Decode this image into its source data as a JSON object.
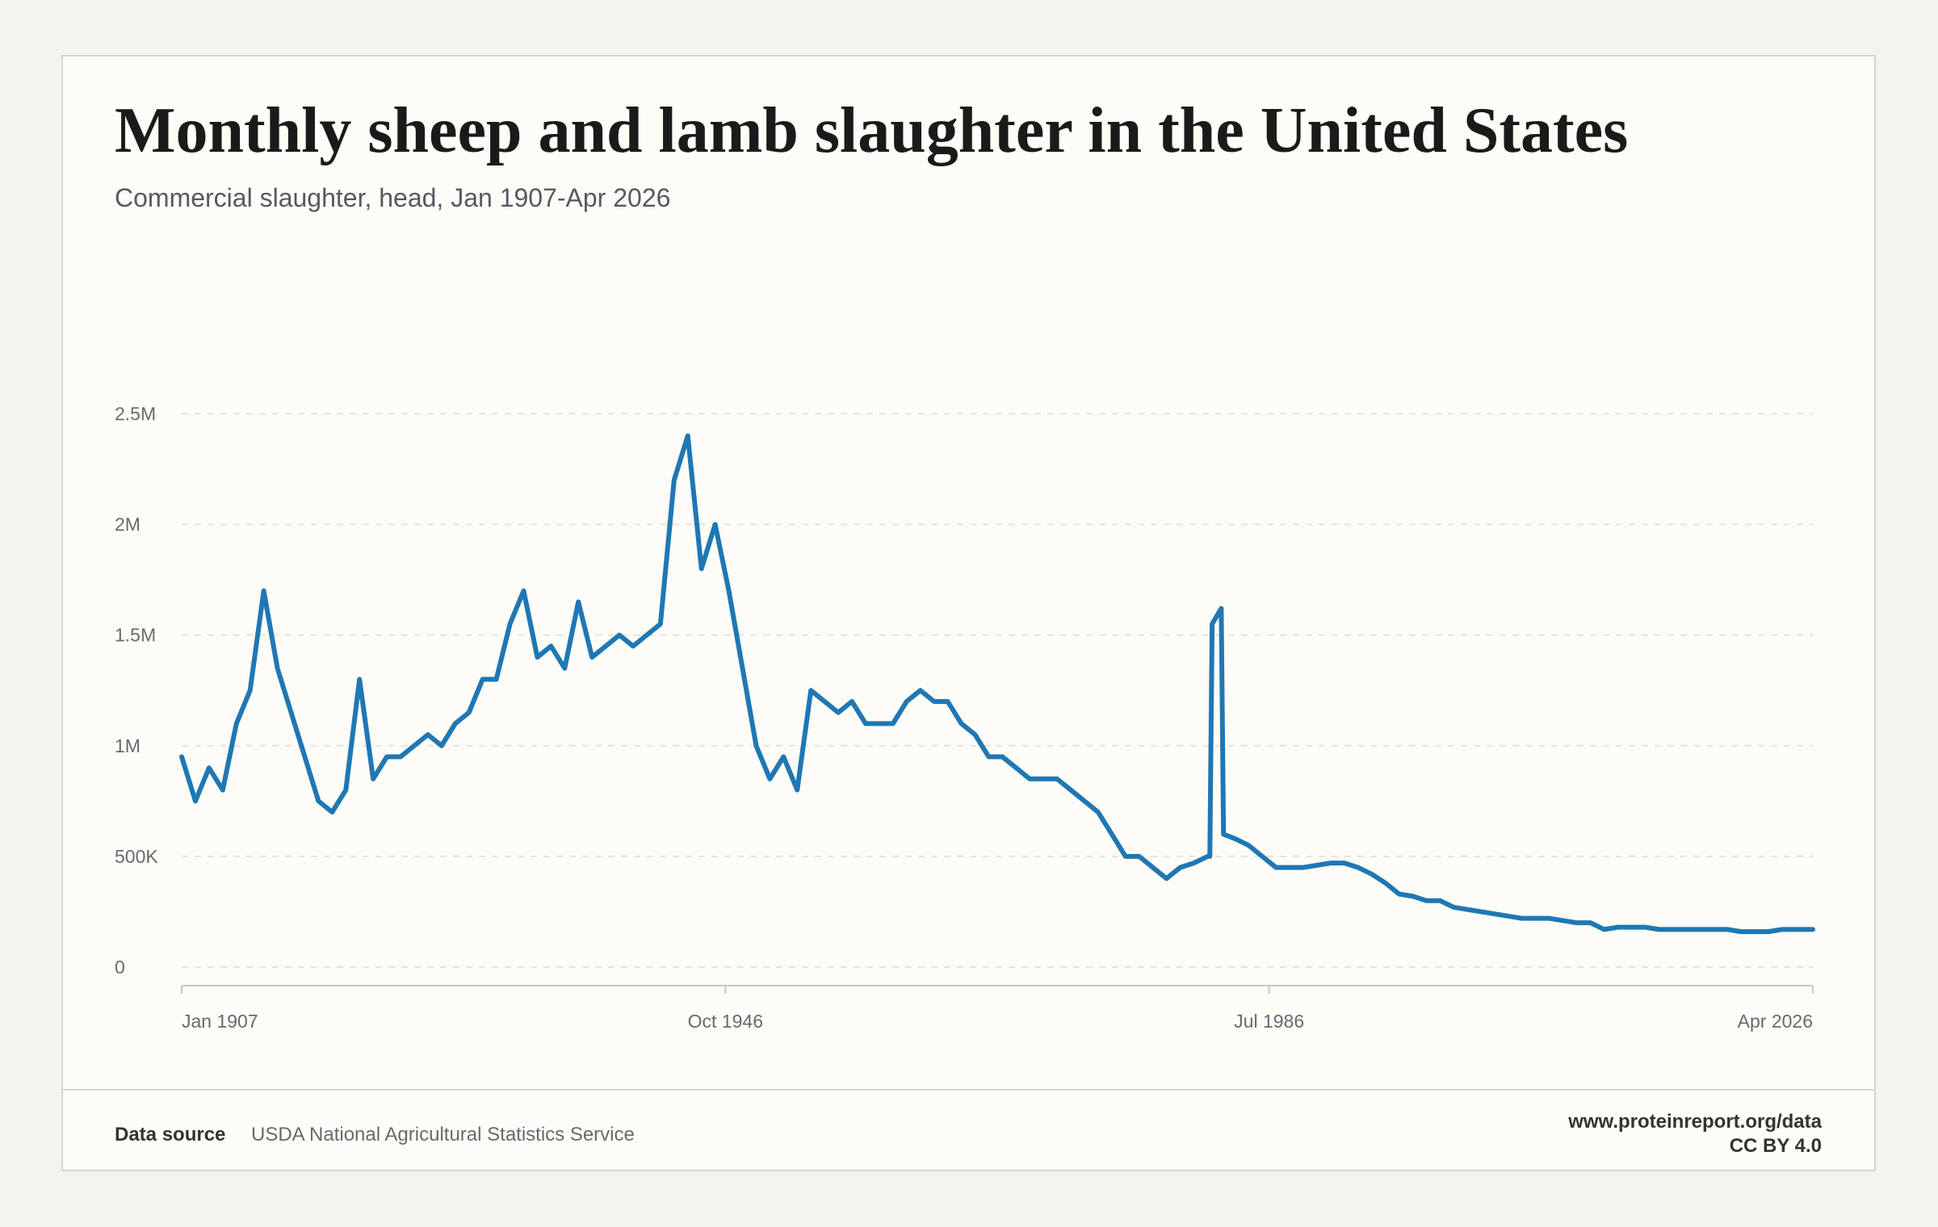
{
  "chart_data": {
    "type": "line",
    "title": "Monthly sheep and lamb slaughter in the United States",
    "subtitle": "Commercial slaughter, head, Jan 1907-Apr 2026",
    "color": "#1f77b4",
    "x": [
      "1907-01",
      "1908-01",
      "1909-01",
      "1910-01",
      "1911-01",
      "1912-01",
      "1913-01",
      "1914-01",
      "1915-01",
      "1916-01",
      "1917-01",
      "1918-01",
      "1919-01",
      "1920-01",
      "1921-01",
      "1922-01",
      "1923-01",
      "1924-01",
      "1925-01",
      "1926-01",
      "1927-01",
      "1928-01",
      "1929-01",
      "1930-01",
      "1931-01",
      "1932-01",
      "1933-01",
      "1934-01",
      "1935-01",
      "1936-01",
      "1937-01",
      "1938-01",
      "1939-01",
      "1940-01",
      "1941-01",
      "1942-01",
      "1943-01",
      "1944-01",
      "1945-01",
      "1946-01",
      "1947-01",
      "1948-01",
      "1949-01",
      "1950-01",
      "1951-01",
      "1952-01",
      "1953-01",
      "1954-01",
      "1955-01",
      "1956-01",
      "1957-01",
      "1958-01",
      "1959-01",
      "1960-01",
      "1961-01",
      "1962-01",
      "1963-01",
      "1964-01",
      "1965-01",
      "1966-01",
      "1967-01",
      "1968-01",
      "1969-01",
      "1970-01",
      "1971-01",
      "1972-01",
      "1973-01",
      "1974-01",
      "1975-01",
      "1976-01",
      "1977-01",
      "1978-01",
      "1979-01",
      "1980-01",
      "1981-01",
      "1982-01",
      "1982-03",
      "1982-05",
      "1983-01",
      "1983-03",
      "1984-01",
      "1985-01",
      "1986-01",
      "1987-01",
      "1988-01",
      "1989-01",
      "1990-01",
      "1991-01",
      "1992-01",
      "1993-01",
      "1994-01",
      "1995-01",
      "1996-01",
      "1997-01",
      "1998-01",
      "1999-01",
      "2000-01",
      "2001-01",
      "2002-01",
      "2003-01",
      "2004-01",
      "2005-01",
      "2006-01",
      "2007-01",
      "2008-01",
      "2009-01",
      "2010-01",
      "2011-01",
      "2012-01",
      "2013-01",
      "2014-01",
      "2015-01",
      "2016-01",
      "2017-01",
      "2018-01",
      "2019-01",
      "2020-01",
      "2021-01",
      "2022-01",
      "2023-01",
      "2024-01",
      "2025-01",
      "2026-04"
    ],
    "values": [
      950000,
      750000,
      900000,
      800000,
      1100000,
      1250000,
      1700000,
      1350000,
      1150000,
      950000,
      750000,
      700000,
      800000,
      1300000,
      850000,
      950000,
      950000,
      1000000,
      1050000,
      1000000,
      1100000,
      1150000,
      1300000,
      1300000,
      1550000,
      1700000,
      1400000,
      1450000,
      1350000,
      1650000,
      1400000,
      1450000,
      1500000,
      1450000,
      1500000,
      1550000,
      2200000,
      2400000,
      1800000,
      2000000,
      1700000,
      1350000,
      1000000,
      850000,
      950000,
      800000,
      1250000,
      1200000,
      1150000,
      1200000,
      1100000,
      1100000,
      1100000,
      1200000,
      1250000,
      1200000,
      1200000,
      1100000,
      1050000,
      950000,
      950000,
      900000,
      850000,
      850000,
      850000,
      800000,
      750000,
      700000,
      600000,
      500000,
      500000,
      450000,
      400000,
      450000,
      470000,
      500000,
      500000,
      1550000,
      1620000,
      600000,
      580000,
      550000,
      500000,
      450000,
      450000,
      450000,
      460000,
      470000,
      470000,
      450000,
      420000,
      380000,
      330000,
      320000,
      300000,
      300000,
      270000,
      260000,
      250000,
      240000,
      230000,
      220000,
      220000,
      220000,
      210000,
      200000,
      200000,
      170000,
      180000,
      180000,
      180000,
      170000,
      170000,
      170000,
      170000,
      170000,
      170000,
      160000,
      160000,
      160000,
      170000,
      170000,
      170000
    ],
    "xlim": [
      "1907-01",
      "2026-04"
    ],
    "xticks": [
      {
        "value": "1907-01",
        "label": "Jan 1907"
      },
      {
        "value": "1946-10",
        "label": "Oct 1946"
      },
      {
        "value": "1986-07",
        "label": "Jul 1986"
      },
      {
        "value": "2026-04",
        "label": "Apr 2026"
      }
    ],
    "ylim": [
      0,
      2750000
    ],
    "yticks": [
      {
        "value": 0,
        "label": "0"
      },
      {
        "value": 500000,
        "label": "500K"
      },
      {
        "value": 1000000,
        "label": "1M"
      },
      {
        "value": 1500000,
        "label": "1.5M"
      },
      {
        "value": 2000000,
        "label": "2M"
      },
      {
        "value": 2500000,
        "label": "2.5M"
      }
    ],
    "grid": true
  },
  "footer": {
    "source_label": "Data source",
    "source": "USDA National Agricultural Statistics Service",
    "url": "www.proteinreport.org/data",
    "license": "CC BY 4.0"
  }
}
